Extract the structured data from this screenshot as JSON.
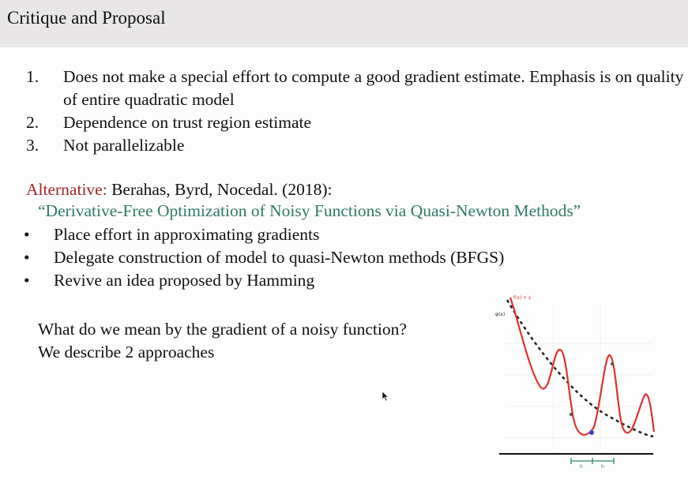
{
  "header": {
    "title": "Critique and Proposal"
  },
  "numbered": [
    {
      "num": "1.",
      "text": "Does not make a special effort to compute a good gradient estimate. Emphasis is on quality of entire quadratic model"
    },
    {
      "num": "2.",
      "text": "Dependence on trust region estimate"
    },
    {
      "num": "3.",
      "text": "Not parallelizable"
    }
  ],
  "alternative": {
    "label": "Alternative:",
    "authors": " Berahas, Byrd, Nocedal. (2018):",
    "paper": "“Derivative-Free Optimization of Noisy Functions via Quasi-Newton Methods”"
  },
  "bullets": [
    {
      "mark": "•",
      "text": "Place effort in approximating gradients"
    },
    {
      "mark": "•",
      "text": "Delegate construction of model to quasi-Newton methods (BFGS)"
    },
    {
      "mark": "•",
      "text": "Revive an idea proposed by Hamming"
    }
  ],
  "question": {
    "line1": "What do we mean by the gradient of a noisy  function?",
    "line2": "We describe 2 approaches"
  },
  "figure": {
    "label_f": "f(x) + ε",
    "label_phi": "φ(x)",
    "tick_a": "h",
    "tick_b": "h",
    "colors": {
      "noisy": "#e03030",
      "smooth": "#222222",
      "axis": "#111111",
      "interval": "#2e8b6a",
      "point": "#3344cc"
    }
  }
}
